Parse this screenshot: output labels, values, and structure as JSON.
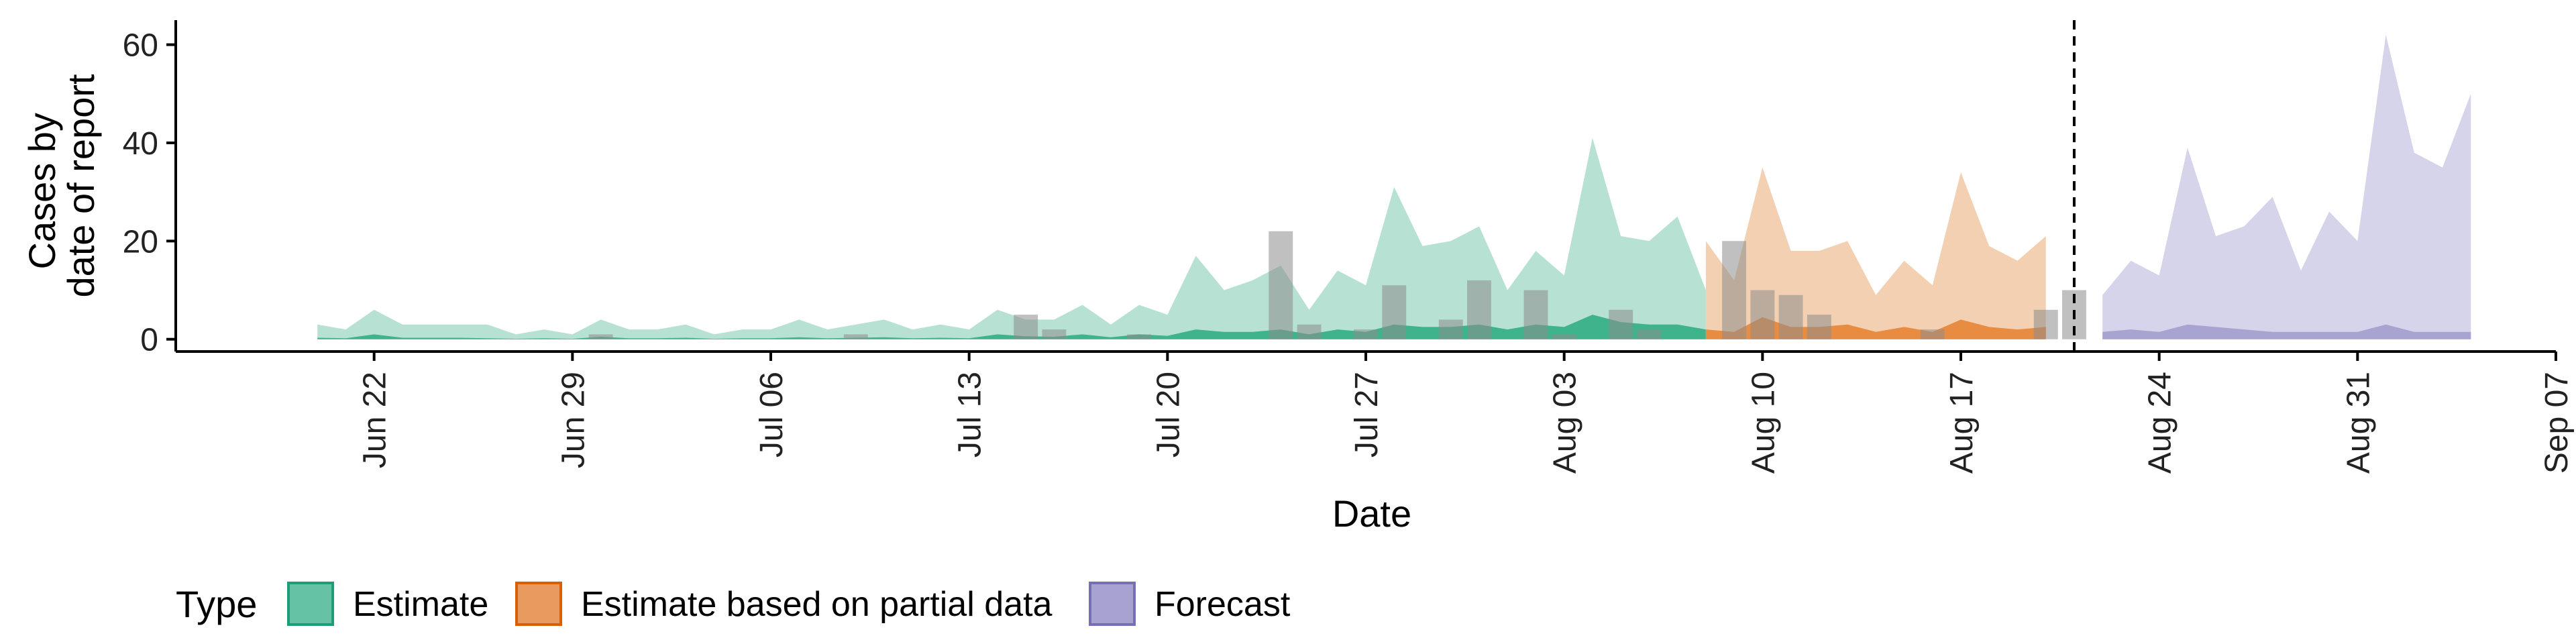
{
  "chart_data": {
    "type": "area",
    "xlabel": "Date",
    "ylabel": "Cases by date of report",
    "ylabel_lines": [
      "Cases by",
      "date of report"
    ],
    "ylim": [
      -2.5,
      65
    ],
    "xlim": [
      "2020-06-15",
      "2020-09-07"
    ],
    "y_ticks": [
      0,
      20,
      40,
      60
    ],
    "x_ticks": [
      {
        "date": "2020-06-22",
        "label": "Jun 22"
      },
      {
        "date": "2020-06-29",
        "label": "Jun 29"
      },
      {
        "date": "2020-07-06",
        "label": "Jul 06"
      },
      {
        "date": "2020-07-13",
        "label": "Jul 13"
      },
      {
        "date": "2020-07-20",
        "label": "Jul 20"
      },
      {
        "date": "2020-07-27",
        "label": "Jul 27"
      },
      {
        "date": "2020-08-03",
        "label": "Aug 03"
      },
      {
        "date": "2020-08-10",
        "label": "Aug 10"
      },
      {
        "date": "2020-08-17",
        "label": "Aug 17"
      },
      {
        "date": "2020-08-24",
        "label": "Aug 24"
      },
      {
        "date": "2020-08-31",
        "label": "Aug 31"
      },
      {
        "date": "2020-09-07",
        "label": "Sep 07"
      }
    ],
    "forecast_line_date": "2020-08-21",
    "legend": {
      "title": "Type",
      "position": "bottom",
      "entries": [
        {
          "label": "Estimate",
          "fill": "#66c2a5",
          "stroke": "#1b9e77"
        },
        {
          "label": "Estimate based on partial data",
          "fill": "#e99a5e",
          "stroke": "#d95f02"
        },
        {
          "label": "Forecast",
          "fill": "#a7a2d0",
          "stroke": "#7570b3"
        }
      ]
    },
    "series": [
      {
        "name": "Estimate",
        "start": "2020-06-20",
        "outer_color": "#b7e2d3",
        "inner_color": "#3fb38c",
        "upper_outer": [
          3,
          2,
          6,
          3,
          3,
          3,
          3,
          1,
          2,
          1,
          4,
          2,
          2,
          3,
          1,
          2,
          2,
          4,
          2,
          3,
          4,
          2,
          3,
          2,
          6,
          4,
          4,
          7,
          3,
          7,
          5,
          17,
          10,
          12,
          15,
          6,
          14,
          11,
          31,
          19,
          20,
          23,
          10,
          18,
          13,
          41,
          21,
          20,
          25,
          10
        ],
        "upper_inner": [
          0.3,
          0.2,
          1,
          0.3,
          0.3,
          0.3,
          0.2,
          0.1,
          0.2,
          0.1,
          0.5,
          0.2,
          0.2,
          0.3,
          0.1,
          0.2,
          0.2,
          0.4,
          0.2,
          0.3,
          0.4,
          0.2,
          0.3,
          0.2,
          1,
          0.6,
          0.5,
          1,
          0.4,
          1,
          0.7,
          2,
          1.5,
          1.5,
          2,
          1,
          2,
          1.5,
          3,
          2.5,
          2.5,
          3,
          2,
          3,
          2.5,
          5,
          3.5,
          3,
          3,
          2
        ]
      },
      {
        "name": "Estimate based on partial data",
        "start": "2020-08-08",
        "outer_color": "#f4d0b2",
        "inner_color": "#e88c41",
        "upper_outer": [
          20,
          12,
          35,
          18,
          18,
          20,
          9,
          16,
          11,
          34,
          19,
          16,
          21
        ],
        "upper_inner": [
          2,
          1.5,
          4.5,
          2.5,
          2.5,
          3,
          1.5,
          2.5,
          1.5,
          4,
          2.5,
          2,
          2.5
        ]
      },
      {
        "name": "Forecast",
        "start": "2020-08-22",
        "outer_color": "#d6d4ea",
        "inner_color": "#a8a4d2",
        "upper_outer": [
          9,
          16,
          13,
          39,
          21,
          23,
          29,
          14,
          26,
          20,
          62,
          38,
          35,
          50
        ],
        "upper_inner": [
          1.5,
          2,
          1.5,
          3,
          2.5,
          2,
          1.5,
          1.5,
          1.5,
          1.5,
          3,
          1.5,
          1.5,
          1.5
        ]
      }
    ],
    "reported_cases": {
      "color": "#8c8c8c",
      "points": [
        {
          "date": "2020-06-30",
          "value": 1
        },
        {
          "date": "2020-07-09",
          "value": 1
        },
        {
          "date": "2020-07-15",
          "value": 5
        },
        {
          "date": "2020-07-16",
          "value": 2
        },
        {
          "date": "2020-07-19",
          "value": 1
        },
        {
          "date": "2020-07-24",
          "value": 22
        },
        {
          "date": "2020-07-25",
          "value": 3
        },
        {
          "date": "2020-07-27",
          "value": 2
        },
        {
          "date": "2020-07-28",
          "value": 11
        },
        {
          "date": "2020-07-30",
          "value": 4
        },
        {
          "date": "2020-07-31",
          "value": 12
        },
        {
          "date": "2020-08-02",
          "value": 10
        },
        {
          "date": "2020-08-03",
          "value": 1
        },
        {
          "date": "2020-08-05",
          "value": 6
        },
        {
          "date": "2020-08-06",
          "value": 2
        },
        {
          "date": "2020-08-09",
          "value": 20
        },
        {
          "date": "2020-08-10",
          "value": 10
        },
        {
          "date": "2020-08-11",
          "value": 9
        },
        {
          "date": "2020-08-12",
          "value": 5
        },
        {
          "date": "2020-08-16",
          "value": 2
        },
        {
          "date": "2020-08-20",
          "value": 6
        },
        {
          "date": "2020-08-21",
          "value": 10
        }
      ]
    }
  }
}
